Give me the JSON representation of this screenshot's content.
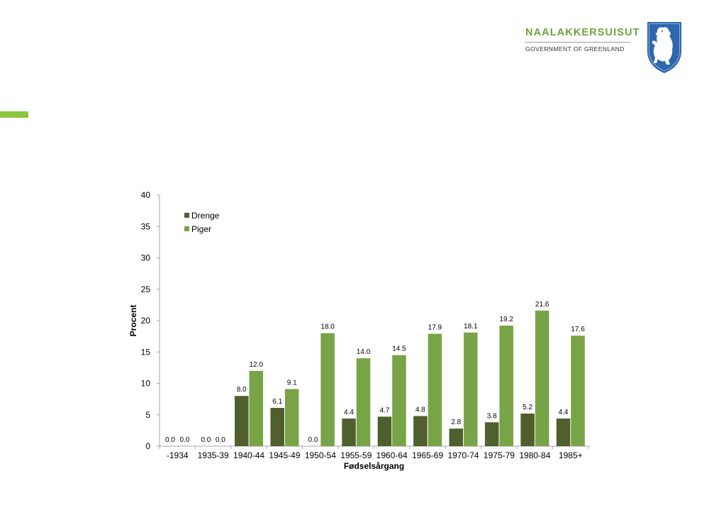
{
  "branding": {
    "name": "NAALAKKERSUISUT",
    "subtitle": "GOVERNMENT OF GREENLAND",
    "name_color": "#6ea23c",
    "accent_color": "#8cc63f"
  },
  "chart_data": {
    "type": "bar",
    "title": "",
    "xlabel": "Fødselsårgang",
    "ylabel": "Procent",
    "ylim": [
      0,
      40
    ],
    "yticks": [
      "0",
      "5",
      "10",
      "15",
      "20",
      "25",
      "30",
      "35",
      "40"
    ],
    "grid": false,
    "legend_position": "top-left",
    "categories": [
      "-1934",
      "1935-39",
      "1940-44",
      "1945-49",
      "1950-54",
      "1955-59",
      "1960-64",
      "1965-69",
      "1970-74",
      "1975-79",
      "1980-84",
      "1985+"
    ],
    "series": [
      {
        "name": "Drenge",
        "color": "#4f5f2d",
        "values": [
          0.0,
          0.0,
          8.0,
          6.1,
          0.0,
          4.4,
          4.7,
          4.8,
          2.8,
          3.8,
          5.2,
          4.4
        ],
        "labels": [
          "0.0",
          "0.0",
          "8.0",
          "6.1",
          "0.0",
          "4.4",
          "4.7",
          "4.8",
          "2.8",
          "3.8",
          "5.2",
          "4.4"
        ]
      },
      {
        "name": "Piger",
        "color": "#78a346",
        "values": [
          0.0,
          0.0,
          12.0,
          9.1,
          18.0,
          14.0,
          14.5,
          17.9,
          18.1,
          19.2,
          21.6,
          17.6
        ],
        "labels": [
          "0.0",
          "0.0",
          "12.0",
          "9.1",
          "18.0",
          "14.0",
          "14.5",
          "17.9",
          "18.1",
          "19.2",
          "21.6",
          "17.6"
        ]
      }
    ]
  }
}
